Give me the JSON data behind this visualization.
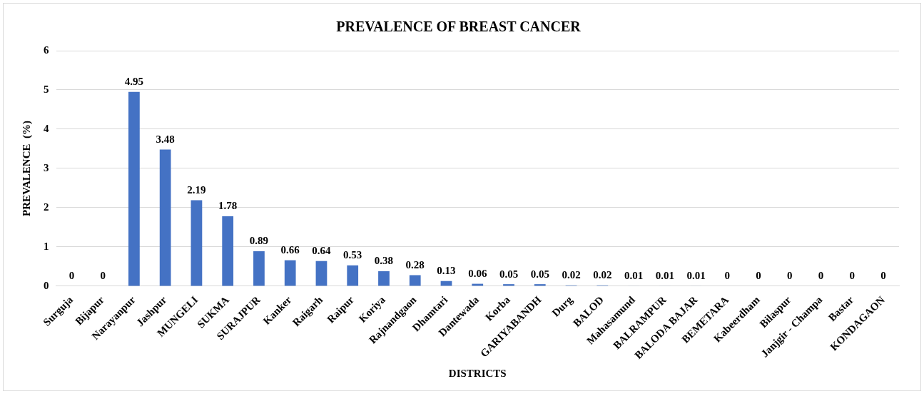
{
  "chart_data": {
    "type": "bar",
    "title": "PREVALENCE OF BREAST CANCER",
    "xlabel": "DISTRICTS",
    "ylabel": "PREVALENCE  (%)",
    "categories": [
      "Surguja",
      "Bijapur",
      "Narayanpur",
      "Jashpur",
      "MUNGELI",
      "SUKMA",
      "SURAJPUR",
      "Kanker",
      "Raigarh",
      "Raipur",
      "Koriya",
      "Rajnandgaon",
      "Dhamtari",
      "Dantewada",
      "Korba",
      "GARIYABANDH",
      "Durg",
      "BALOD",
      "Mahasamund",
      "BALRAMPUR",
      "BALODA BAJAR",
      "BEMETARA",
      "Kabeerdham",
      "Bilaspur",
      "Janjgir - Champa",
      "Bastar",
      "KONDAGAON"
    ],
    "values": [
      0,
      0,
      4.95,
      3.48,
      2.19,
      1.78,
      0.89,
      0.66,
      0.64,
      0.53,
      0.38,
      0.28,
      0.13,
      0.06,
      0.05,
      0.05,
      0.02,
      0.02,
      0.01,
      0.01,
      0.01,
      0,
      0,
      0,
      0,
      0,
      0
    ],
    "color": "#4472c4",
    "ylim": [
      0,
      6
    ],
    "yticks": [
      0,
      1,
      2,
      3,
      4,
      5,
      6
    ],
    "grid": "y",
    "legend": false,
    "data_labels": true
  }
}
